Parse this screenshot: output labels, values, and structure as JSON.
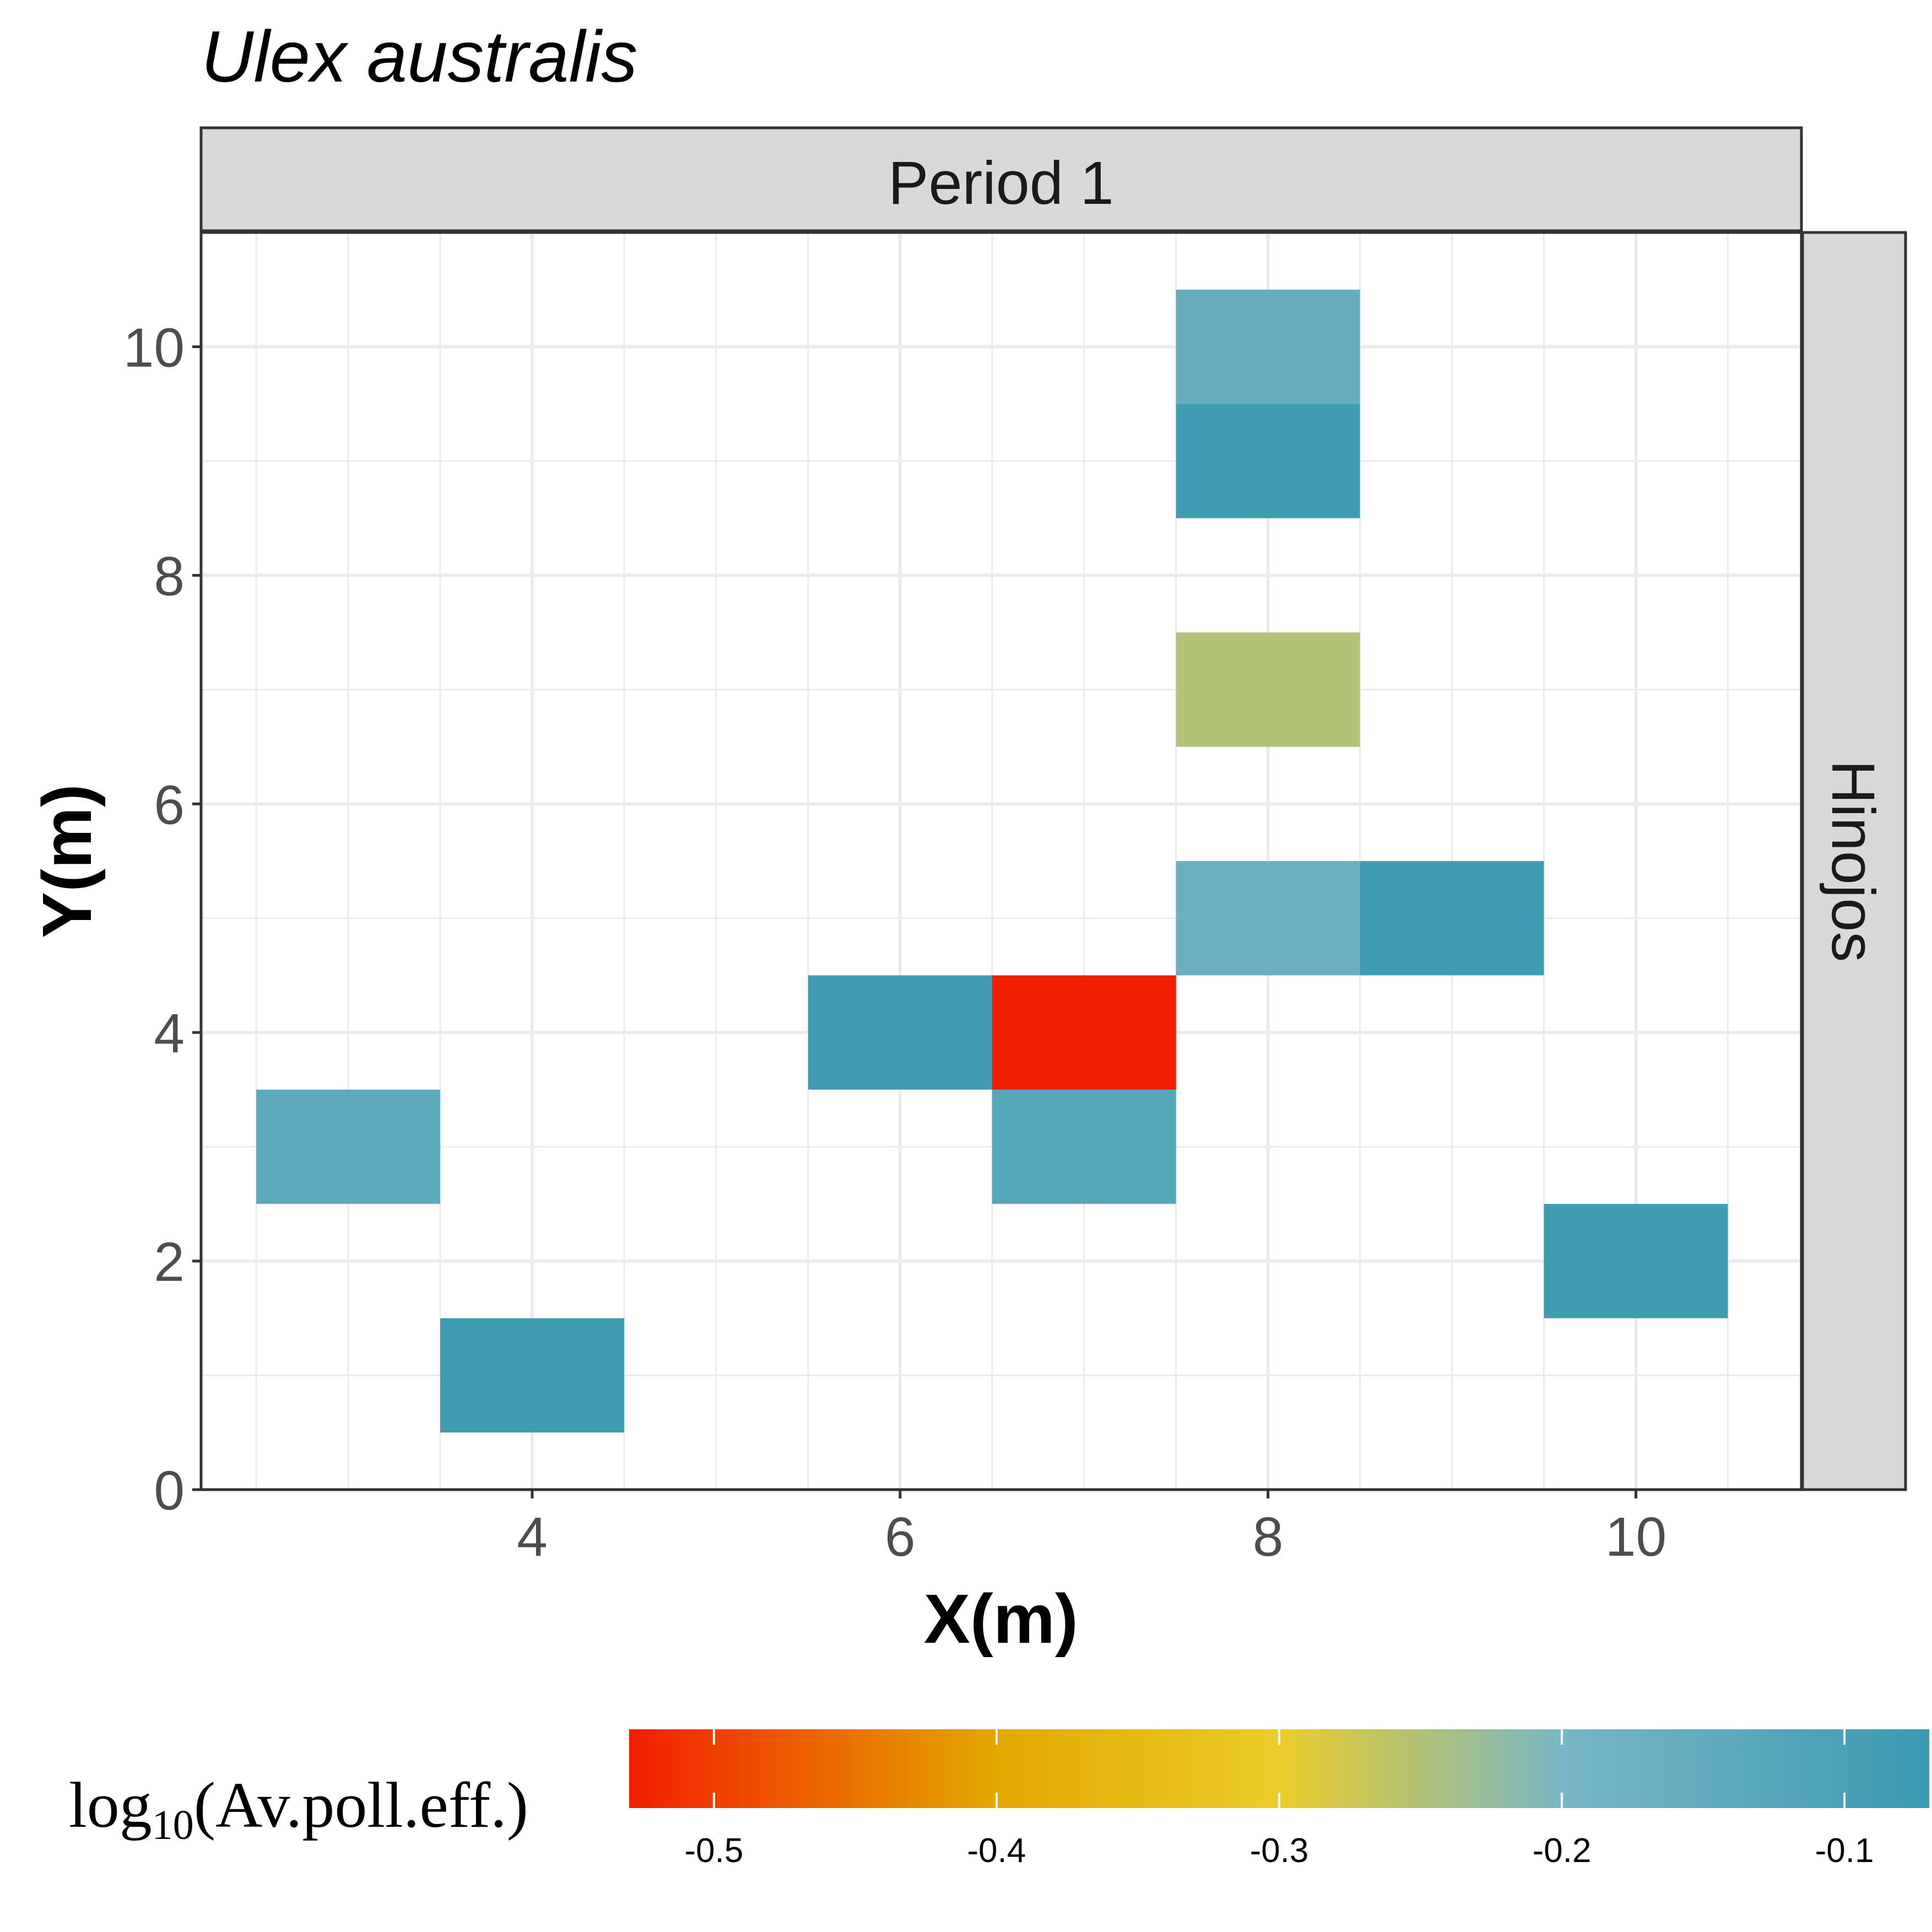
{
  "chart_data": {
    "type": "heatmap",
    "title": "Ulex australis",
    "facet_col_label": "Period 1",
    "facet_row_label": "Hinojos",
    "xlabel": "X(m)",
    "ylabel": "Y(m)",
    "xlim": [
      2.2,
      10.9
    ],
    "ylim": [
      0,
      11
    ],
    "x_ticks": [
      4,
      6,
      8,
      10
    ],
    "y_ticks": [
      0,
      2,
      4,
      6,
      8,
      10
    ],
    "x_tick_labels": [
      "4",
      "6",
      "8",
      "10"
    ],
    "y_tick_labels": [
      "0",
      "2",
      "4",
      "6",
      "8",
      "10"
    ],
    "cells": [
      {
        "x": 8,
        "y": 10,
        "value": -0.16
      },
      {
        "x": 8,
        "y": 9,
        "value": -0.08
      },
      {
        "x": 8,
        "y": 7,
        "value": -0.25
      },
      {
        "x": 8,
        "y": 5,
        "value": -0.17
      },
      {
        "x": 9,
        "y": 5,
        "value": -0.08
      },
      {
        "x": 6,
        "y": 4,
        "value": -0.08
      },
      {
        "x": 7,
        "y": 4,
        "value": -0.53
      },
      {
        "x": 7,
        "y": 3,
        "value": -0.13
      },
      {
        "x": 3,
        "y": 3,
        "value": -0.14
      },
      {
        "x": 10,
        "y": 2,
        "value": -0.08
      },
      {
        "x": 4,
        "y": 1,
        "value": -0.08
      }
    ],
    "legend": {
      "title_main": "log",
      "title_sub": "10",
      "title_rest": "(Av.poll.eff.)",
      "placement": "bottom",
      "range": [
        -0.53,
        -0.07
      ],
      "ticks": [
        -0.5,
        -0.4,
        -0.3,
        -0.2,
        -0.1
      ],
      "tick_labels": [
        "-0.5",
        "-0.4",
        "-0.3",
        "-0.2",
        "-0.1"
      ],
      "color_stops": [
        {
          "value": -0.53,
          "color": "#f21e00"
        },
        {
          "value": -0.4,
          "color": "#e3a800"
        },
        {
          "value": -0.3,
          "color": "#ebcc2a"
        },
        {
          "value": -0.2,
          "color": "#78b7c5"
        },
        {
          "value": -0.07,
          "color": "#3b9ab2"
        }
      ]
    },
    "grid": true
  }
}
